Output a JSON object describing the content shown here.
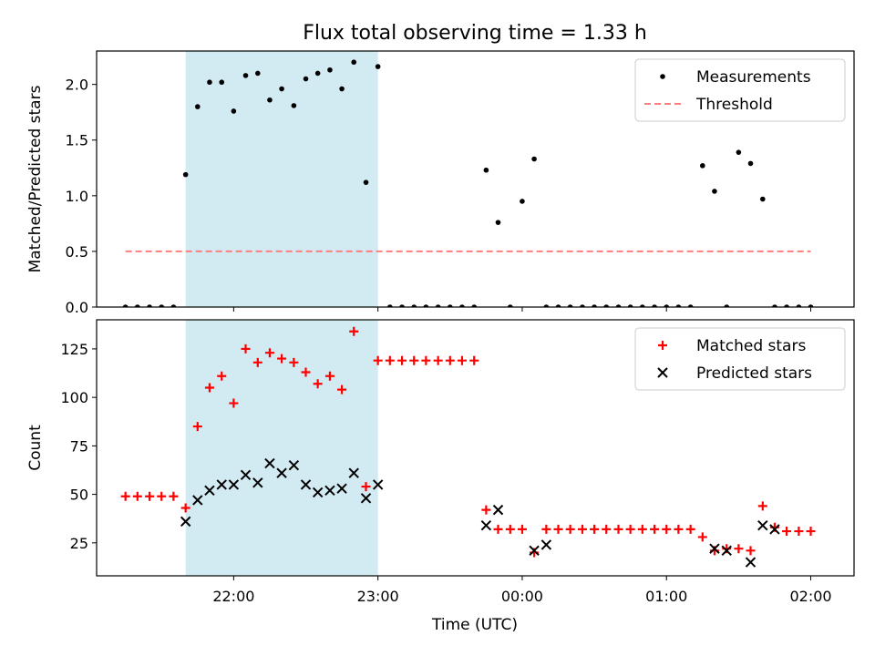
{
  "chart_data": {
    "title": "Flux total observing time = 1.33 h",
    "xlabel": "Time (UTC)",
    "xlim_hours": [
      21.05,
      26.3
    ],
    "xticks": [
      {
        "value": 22,
        "label": "22:00"
      },
      {
        "value": 23,
        "label": "23:00"
      },
      {
        "value": 24,
        "label": "00:00"
      },
      {
        "value": 25,
        "label": "01:00"
      },
      {
        "value": 26,
        "label": "02:00"
      }
    ],
    "shaded_span": {
      "x_start": 21.667,
      "x_end": 23.0,
      "color": "#add8e6"
    },
    "panels": [
      {
        "type": "scatter",
        "ylabel": "Matched/Predicted stars",
        "ylim": [
          0,
          2.3
        ],
        "yticks": [
          {
            "value": 0,
            "label": "0.0"
          },
          {
            "value": 0.5,
            "label": "0.5"
          },
          {
            "value": 1.0,
            "label": "1.0"
          },
          {
            "value": 1.5,
            "label": "1.5"
          },
          {
            "value": 2.0,
            "label": "2.0"
          }
        ],
        "legend": {
          "position": "upper-right",
          "entries": [
            "Measurements",
            "Threshold"
          ]
        },
        "series": [
          {
            "name": "Measurements",
            "marker": "dot",
            "color": "#000000",
            "x": [
              21.25,
              21.333,
              21.417,
              21.5,
              21.583,
              21.667,
              21.75,
              21.833,
              21.917,
              22.0,
              22.083,
              22.167,
              22.25,
              22.333,
              22.417,
              22.5,
              22.583,
              22.667,
              22.75,
              22.833,
              22.917,
              23.0,
              23.083,
              23.167,
              23.25,
              23.333,
              23.417,
              23.5,
              23.583,
              23.667,
              23.75,
              23.833,
              23.917,
              24.0,
              24.083,
              24.167,
              24.25,
              24.333,
              24.417,
              24.5,
              24.583,
              24.667,
              24.75,
              24.833,
              24.917,
              25.0,
              25.083,
              25.167,
              25.25,
              25.333,
              25.417,
              25.5,
              25.583,
              25.667,
              25.75,
              25.833,
              25.917,
              26.0
            ],
            "y": [
              0,
              0,
              0,
              0,
              0,
              1.19,
              1.8,
              2.02,
              2.02,
              1.76,
              2.08,
              2.1,
              1.86,
              1.96,
              1.81,
              2.05,
              2.1,
              2.13,
              1.96,
              2.2,
              1.12,
              2.16,
              0,
              0,
              0,
              0,
              0,
              0,
              0,
              0,
              1.23,
              0.76,
              0,
              0.95,
              1.33,
              0,
              0,
              0,
              0,
              0,
              0,
              0,
              0,
              0,
              0,
              0,
              0,
              0,
              1.27,
              1.04,
              0,
              1.39,
              1.29,
              0.97,
              0,
              0,
              0,
              0
            ]
          },
          {
            "name": "Threshold",
            "type": "line",
            "style": "dashed",
            "color": "#ff7f7f",
            "x": [
              21.25,
              26.0
            ],
            "y": [
              0.5,
              0.5
            ]
          }
        ]
      },
      {
        "type": "scatter",
        "ylabel": "Count",
        "ylim": [
          8,
          140
        ],
        "yticks": [
          {
            "value": 25,
            "label": "25"
          },
          {
            "value": 50,
            "label": "50"
          },
          {
            "value": 75,
            "label": "75"
          },
          {
            "value": 100,
            "label": "100"
          },
          {
            "value": 125,
            "label": "125"
          }
        ],
        "legend": {
          "position": "upper-right",
          "entries": [
            "Matched stars",
            "Predicted stars"
          ]
        },
        "series": [
          {
            "name": "Matched stars",
            "marker": "plus",
            "color": "#ff0000",
            "x": [
              21.25,
              21.333,
              21.417,
              21.5,
              21.583,
              21.667,
              21.75,
              21.833,
              21.917,
              22.0,
              22.083,
              22.167,
              22.25,
              22.333,
              22.417,
              22.5,
              22.583,
              22.667,
              22.75,
              22.833,
              22.917,
              23.0,
              23.083,
              23.167,
              23.25,
              23.333,
              23.417,
              23.5,
              23.583,
              23.667,
              23.75,
              23.833,
              23.917,
              24.0,
              24.083,
              24.167,
              24.25,
              24.333,
              24.417,
              24.5,
              24.583,
              24.667,
              24.75,
              24.833,
              24.917,
              25.0,
              25.083,
              25.167,
              25.25,
              25.333,
              25.417,
              25.5,
              25.583,
              25.667,
              25.75,
              25.833,
              25.917,
              26.0
            ],
            "y": [
              49,
              49,
              49,
              49,
              49,
              43,
              85,
              105,
              111,
              97,
              125,
              118,
              123,
              120,
              118,
              113,
              107,
              111,
              104,
              134,
              54,
              119,
              119,
              119,
              119,
              119,
              119,
              119,
              119,
              119,
              42,
              32,
              32,
              32,
              20,
              32,
              32,
              32,
              32,
              32,
              32,
              32,
              32,
              32,
              32,
              32,
              32,
              32,
              28,
              21,
              22,
              22,
              21,
              44,
              33,
              31,
              31,
              31
            ]
          },
          {
            "name": "Predicted stars",
            "marker": "x",
            "color": "#000000",
            "x": [
              21.667,
              21.75,
              21.833,
              21.917,
              22.0,
              22.083,
              22.167,
              22.25,
              22.333,
              22.417,
              22.5,
              22.583,
              22.667,
              22.75,
              22.833,
              22.917,
              23.0,
              23.75,
              23.833,
              24.083,
              24.167,
              25.333,
              25.417,
              25.583,
              25.667,
              25.75
            ],
            "y": [
              36,
              47,
              52,
              55,
              55,
              60,
              56,
              66,
              61,
              65,
              55,
              51,
              52,
              53,
              61,
              48,
              55,
              34,
              42,
              21,
              24,
              22,
              21,
              15,
              34,
              32
            ]
          }
        ]
      }
    ]
  }
}
